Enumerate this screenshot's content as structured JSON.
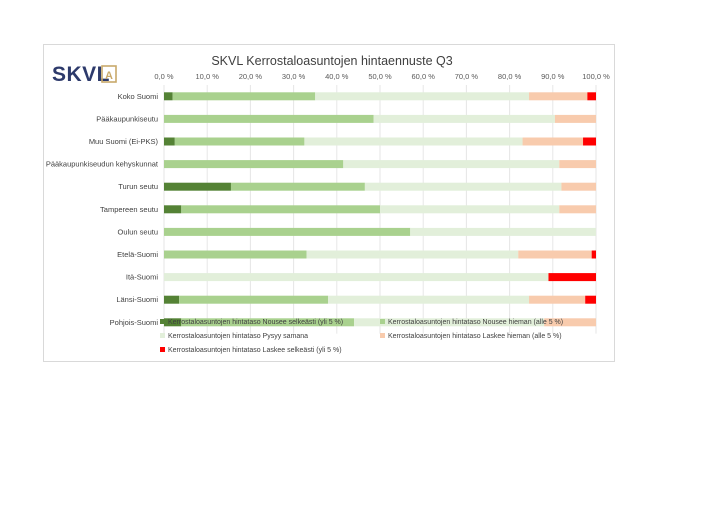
{
  "logo": {
    "text": "SKVL",
    "mark": "A",
    "color": "#2d3a6b",
    "accent": "#c8a96a"
  },
  "chart_data": {
    "type": "bar",
    "orientation": "horizontal",
    "stacked": "percent",
    "title": "SKVL Kerrostaloasuntojen hintaennuste Q3",
    "xlim": [
      0,
      100
    ],
    "xticks": [
      0,
      10,
      20,
      30,
      40,
      50,
      60,
      70,
      80,
      90,
      100
    ],
    "xtick_labels": [
      "0,0 %",
      "10,0 %",
      "20,0 %",
      "30,0 %",
      "40,0 %",
      "50,0 %",
      "60,0 %",
      "70,0 %",
      "80,0 %",
      "90,0 %",
      "100,0 %"
    ],
    "grid": true,
    "legend_position": "bottom",
    "categories": [
      "Koko Suomi",
      "Pääkaupunkiseutu",
      "Muu Suomi (Ei-PKS)",
      "Pääkaupunkiseudun kehyskunnat",
      "Turun seutu",
      "Tampereen seutu",
      "Oulun seutu",
      "Etelä-Suomi",
      "Itä-Suomi",
      "Länsi-Suomi",
      "Pohjois-Suomi"
    ],
    "series": [
      {
        "name": "Kerrostaloasuntojen hintataso Nousee selkeästi (yli 5 %)",
        "color": "#548235",
        "values": [
          2,
          0,
          2.5,
          0,
          15.5,
          4,
          0,
          0,
          0,
          3.5,
          4
        ]
      },
      {
        "name": "Kerrostaloasuntojen hintataso Nousee hieman (alle 5 %)",
        "color": "#a9d18e",
        "values": [
          33,
          48.5,
          30,
          41.5,
          31,
          46,
          57,
          33,
          0,
          34.5,
          40
        ]
      },
      {
        "name": "Kerrostaloasuntojen hintataso Pysyy samana",
        "color": "#e2efda",
        "values": [
          49.5,
          42,
          50.5,
          50,
          45.5,
          41.5,
          43,
          49,
          89,
          46.5,
          44
        ]
      },
      {
        "name": "Kerrostaloasuntojen hintataso Laskee hieman (alle 5 %)",
        "color": "#f8cbad",
        "values": [
          13.5,
          9.5,
          14,
          8.5,
          8,
          8.5,
          0,
          17,
          0,
          13,
          12
        ]
      },
      {
        "name": "Kerrostaloasuntojen hintataso Laskee selkeästi (yli 5 %)",
        "color": "#ff0000",
        "values": [
          2,
          0,
          3,
          0,
          0,
          0,
          0,
          1,
          11,
          2.5,
          0
        ]
      }
    ]
  }
}
